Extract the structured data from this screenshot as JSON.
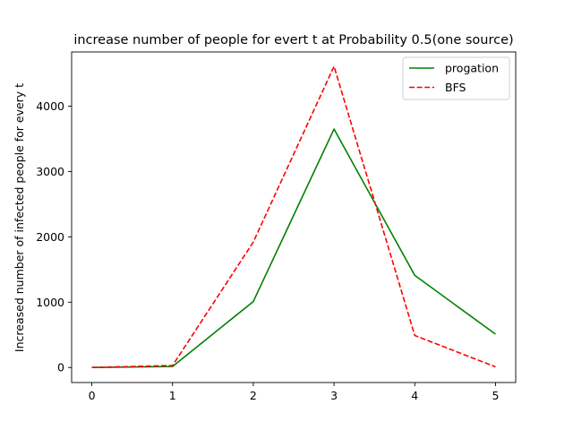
{
  "chart_data": {
    "type": "line",
    "title": "increase number of people for evert t  at Probability  0.5(one  source)",
    "xlabel": "",
    "ylabel": "Increased number of infected people for every t",
    "x": [
      0,
      1,
      2,
      3,
      4,
      5
    ],
    "xlim": [
      -0.25,
      5.25
    ],
    "ylim": [
      -230,
      4830
    ],
    "xticks": [
      0,
      1,
      2,
      3,
      4,
      5
    ],
    "yticks": [
      0,
      1000,
      2000,
      3000,
      4000
    ],
    "grid": false,
    "legend_position": "top-right",
    "series": [
      {
        "name": "progation",
        "values": [
          0,
          15,
          1010,
          3650,
          1410,
          510
        ],
        "color": "#008000",
        "dash": "solid"
      },
      {
        "name": "BFS",
        "values": [
          0,
          30,
          1920,
          4610,
          490,
          10
        ],
        "color": "#ff0000",
        "dash": "dashed"
      }
    ]
  }
}
